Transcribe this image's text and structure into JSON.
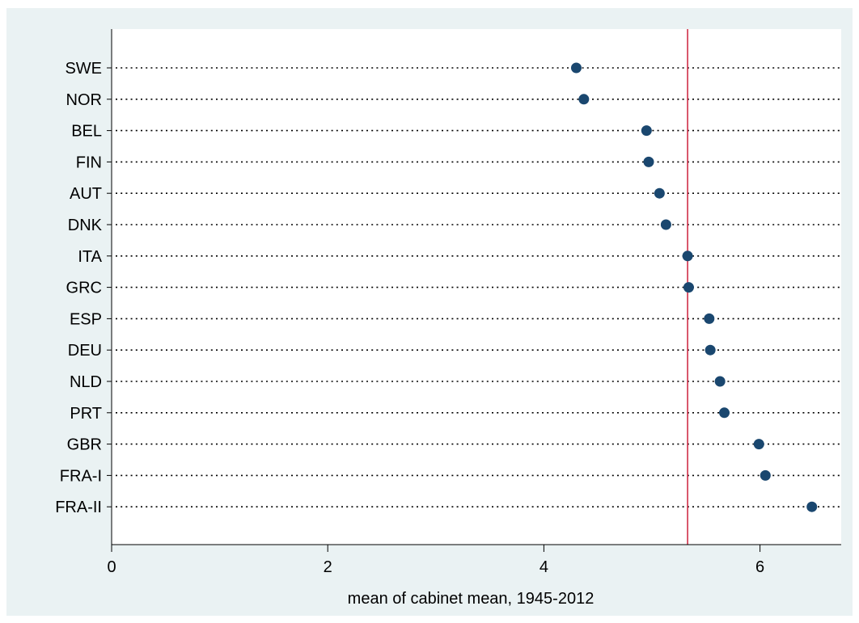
{
  "chart_data": {
    "type": "scatter",
    "title": "",
    "xlabel": "mean of cabinet mean, 1945-2012",
    "ylabel": "",
    "xlim": [
      0,
      6.75
    ],
    "xticks": [
      0,
      2,
      4,
      6
    ],
    "xtick_labels": [
      "0",
      "2",
      "4",
      "6"
    ],
    "categories": [
      "SWE",
      "NOR",
      "BEL",
      "FIN",
      "AUT",
      "DNK",
      "ITA",
      "GRC",
      "ESP",
      "DEU",
      "NLD",
      "PRT",
      "GBR",
      "FRA-I",
      "FRA-II"
    ],
    "values": [
      4.3,
      4.37,
      4.95,
      4.97,
      5.07,
      5.13,
      5.33,
      5.34,
      5.53,
      5.54,
      5.63,
      5.67,
      5.99,
      6.05,
      6.48
    ],
    "reference_line": {
      "x": 5.33,
      "color": "#c8102e"
    },
    "grid": "dotted horizontal lines per category",
    "colors": {
      "marker": "#1a476f",
      "plot_region_bg": "#ffffff",
      "graph_region_bg": "#eaf2f3"
    }
  }
}
